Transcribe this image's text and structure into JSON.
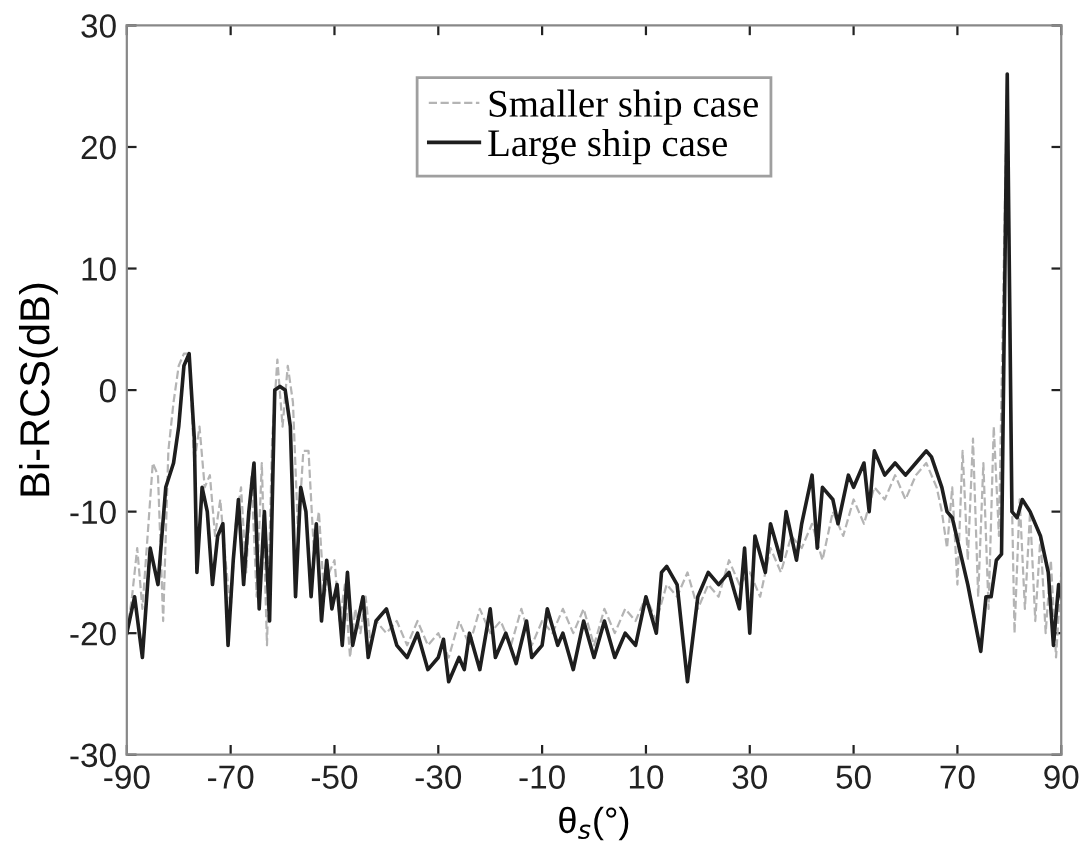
{
  "chart_data": {
    "type": "line",
    "xlabel": "θ$_{s}$(°)",
    "ylabel": "Bi-RCS(dB)",
    "xlim": [
      -90,
      90
    ],
    "ylim": [
      -30,
      30
    ],
    "xticks": [
      -90,
      -70,
      -50,
      -30,
      -10,
      10,
      30,
      50,
      70,
      90
    ],
    "yticks": [
      -30,
      -20,
      -10,
      0,
      10,
      20,
      30
    ],
    "grid": false,
    "legend": "top",
    "marker": "none",
    "series": [
      {
        "name": "Smaller ship case",
        "color": "#b4b4b4",
        "line_style": "dashed",
        "x": [
          -90,
          -89,
          -88,
          -87,
          -86,
          -85,
          -84,
          -83,
          -82,
          -81,
          -80,
          -79,
          -78,
          -77,
          -76,
          -75,
          -74,
          -73,
          -72,
          -71,
          -70,
          -69,
          -68,
          -67,
          -66,
          -65,
          -64,
          -63,
          -62,
          -61,
          -60,
          -59,
          -58,
          -57,
          -56,
          -55,
          -54,
          -53,
          -52,
          -51,
          -50,
          -49,
          -48,
          -47,
          -46,
          -45,
          -44,
          -43,
          -42,
          -40,
          -38,
          -36,
          -34,
          -32,
          -30,
          -28,
          -26,
          -24,
          -22,
          -20,
          -18,
          -16,
          -14,
          -12,
          -10,
          -8,
          -6,
          -4,
          -2,
          0,
          2,
          4,
          6,
          8,
          10,
          12,
          14,
          16,
          18,
          20,
          22,
          24,
          26,
          28,
          30,
          32,
          34,
          36,
          38,
          40,
          42,
          44,
          46,
          48,
          50,
          52,
          54,
          56,
          58,
          60,
          62,
          64,
          66,
          67,
          68,
          69,
          70,
          71,
          72,
          73,
          74,
          75,
          76,
          77,
          78,
          79.6,
          80.5,
          81,
          82,
          83,
          84,
          85,
          86,
          87,
          88,
          89,
          90
        ],
        "values": [
          -20,
          -17,
          -13,
          -18,
          -12,
          -6,
          -7,
          -19,
          -5,
          -1,
          2,
          3,
          3,
          -6,
          -3,
          -8,
          -7,
          -12,
          -9,
          -14,
          -18,
          -11,
          -8,
          -15,
          -7,
          -17,
          -6,
          -21,
          -4,
          2.5,
          -3,
          2,
          -1,
          -12,
          -5,
          -5,
          -13,
          -10,
          -17,
          -15,
          -14,
          -19,
          -16,
          -22,
          -18,
          -20,
          -17,
          -21,
          -19,
          -20,
          -19,
          -21,
          -19,
          -21,
          -20,
          -22,
          -19,
          -21,
          -18,
          -20,
          -19,
          -21,
          -18,
          -21,
          -19,
          -20,
          -18,
          -20,
          -18,
          -21,
          -18,
          -20,
          -18,
          -19,
          -17,
          -19,
          -16,
          -17,
          -15,
          -18,
          -16,
          -17,
          -14,
          -16,
          -15,
          -17,
          -13,
          -15,
          -12,
          -13,
          -11,
          -14,
          -10,
          -12,
          -9,
          -11,
          -8,
          -9,
          -7,
          -9,
          -7,
          -6,
          -8,
          -10,
          -13,
          -8,
          -16,
          -5,
          -14,
          -4,
          -17,
          -6,
          -18,
          -3,
          -12,
          26,
          -9,
          -20,
          -9,
          -18,
          -10,
          -19,
          -12,
          -20,
          -14,
          -22,
          -15
        ]
      },
      {
        "name": "Large ship case",
        "color": "#1e1e1e",
        "line_style": "solid",
        "x": [
          -90,
          -88.5,
          -87,
          -85.5,
          -84,
          -82.5,
          -81,
          -80,
          -79,
          -78,
          -77,
          -76.5,
          -75.5,
          -74.5,
          -73.5,
          -72.5,
          -71.5,
          -70.5,
          -69.5,
          -68.5,
          -67.5,
          -66.5,
          -65.5,
          -64.5,
          -63.5,
          -62.5,
          -61.5,
          -60.5,
          -59.5,
          -58.5,
          -57.5,
          -56.5,
          -55.5,
          -54.5,
          -53.5,
          -52.5,
          -51.5,
          -50.5,
          -49.5,
          -48.5,
          -47.5,
          -46.5,
          -45.5,
          -44.5,
          -43.5,
          -42,
          -40,
          -38,
          -36,
          -34,
          -32,
          -30,
          -29,
          -28,
          -26,
          -25,
          -24,
          -22,
          -20,
          -19,
          -17,
          -15,
          -13,
          -12,
          -10,
          -9,
          -7,
          -6,
          -4,
          -2,
          0,
          2,
          4,
          6,
          8,
          10,
          12,
          13,
          14,
          16,
          18,
          20,
          22,
          24,
          26,
          28,
          29,
          30,
          31,
          33,
          34,
          36,
          37,
          39,
          40,
          42,
          43,
          44,
          46,
          47,
          49,
          50,
          52,
          53,
          54,
          56,
          58,
          60,
          62,
          64,
          65,
          67,
          68,
          69,
          72,
          74.5,
          75.5,
          76.5,
          77.5,
          78.5,
          79.6,
          80.5,
          81.5,
          82.5,
          84,
          86,
          87.5,
          88.5,
          89.5,
          90
        ],
        "values": [
          -20,
          -17,
          -22,
          -13,
          -16,
          -8,
          -6,
          -3,
          2,
          3,
          -4,
          -15,
          -8,
          -10,
          -16,
          -12,
          -11,
          -21,
          -14,
          -9,
          -16,
          -10,
          -6,
          -18,
          -10,
          -19,
          0,
          0.3,
          0,
          -3,
          -17,
          -8,
          -10,
          -17,
          -11,
          -19,
          -14,
          -18,
          -16,
          -21,
          -15,
          -21,
          -19,
          -17,
          -22,
          -19,
          -18,
          -21,
          -22,
          -20,
          -23,
          -22,
          -20.5,
          -24,
          -22,
          -23,
          -20,
          -23,
          -18,
          -22,
          -20,
          -22.5,
          -19,
          -22,
          -21,
          -18,
          -21,
          -20,
          -23,
          -19,
          -22,
          -19,
          -22,
          -20,
          -21,
          -17,
          -20,
          -15,
          -14.5,
          -16,
          -24,
          -17,
          -15,
          -16,
          -15,
          -18,
          -13,
          -20,
          -12,
          -15,
          -11,
          -14,
          -10,
          -14,
          -11,
          -7,
          -13,
          -8,
          -9,
          -11,
          -7,
          -8,
          -6,
          -10,
          -5,
          -7,
          -6,
          -7,
          -6,
          -5,
          -5.5,
          -8,
          -10,
          -10.5,
          -16,
          -21.5,
          -17,
          -17,
          -14,
          -13.5,
          26,
          -10,
          -10.5,
          -9,
          -10,
          -12,
          -15,
          -21,
          -16,
          -17
        ]
      }
    ]
  }
}
